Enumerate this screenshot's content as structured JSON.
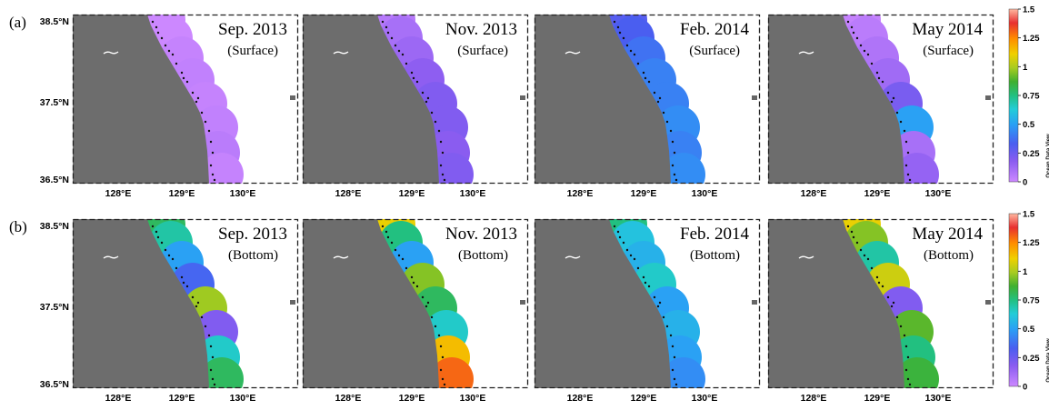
{
  "figure": {
    "rows": [
      {
        "label": "(a)",
        "depth": "(Surface)",
        "panels": [
          {
            "title": "Sep. 2013",
            "values": [
              0.0,
              0.0,
              0.02,
              0.03,
              0.02,
              0.03,
              0.05,
              0.02
            ]
          },
          {
            "title": "Nov. 2013",
            "values": [
              0.06,
              0.1,
              0.13,
              0.17,
              0.2,
              0.2,
              0.18,
              0.2
            ]
          },
          {
            "title": "Feb. 2014",
            "values": [
              0.3,
              0.33,
              0.38,
              0.42,
              0.42,
              0.45,
              0.42,
              0.45
            ]
          },
          {
            "title": "May 2014",
            "values": [
              0.02,
              0.05,
              0.08,
              0.12,
              0.22,
              0.5,
              0.1,
              0.15
            ]
          }
        ]
      },
      {
        "label": "(b)",
        "depth": "(Bottom)",
        "panels": [
          {
            "title": "Sep. 2013",
            "values": [
              0.8,
              0.7,
              0.5,
              0.35,
              0.98,
              0.2,
              0.65,
              0.8
            ]
          },
          {
            "title": "Nov. 2013",
            "values": [
              1.1,
              0.75,
              0.5,
              0.95,
              0.8,
              0.65,
              1.15,
              1.3
            ]
          },
          {
            "title": "Feb. 2014",
            "values": [
              0.75,
              0.6,
              0.55,
              0.65,
              0.5,
              0.55,
              0.5,
              0.45
            ]
          },
          {
            "title": "May 2014",
            "values": [
              1.1,
              0.95,
              0.7,
              1.05,
              0.2,
              0.9,
              0.75,
              0.85
            ]
          }
        ]
      }
    ],
    "lat_labels": [
      "38.5°N",
      "37.5°N",
      "36.5°N"
    ],
    "lon_labels": [
      "128°E",
      "129°E",
      "130°E"
    ],
    "colorbar": {
      "ticks": [
        "1.5",
        "1.25",
        "1",
        "0.75",
        "0.5",
        "0.25",
        "0"
      ],
      "min": 0,
      "max": 1.5,
      "caption": "Ocean Data View"
    },
    "colors": {
      "land": "#6d6d6d",
      "station": "#111111",
      "frame": "#333333"
    }
  }
}
